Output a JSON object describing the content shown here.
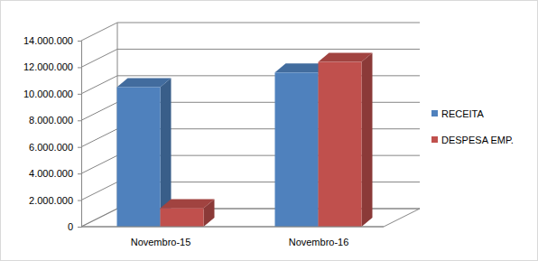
{
  "chart_data": {
    "type": "bar",
    "categories": [
      "Novembro-15",
      "Novembro-16"
    ],
    "series": [
      {
        "name": "RECEITA",
        "color": "#4f81bd",
        "values": [
          10500000,
          11600000
        ]
      },
      {
        "name": "DESPESA EMP.",
        "color": "#c0504d",
        "values": [
          1400000,
          12400000
        ]
      }
    ],
    "ylim": [
      0,
      14000000
    ],
    "yticks": [
      0,
      {
        "value": 2000000,
        "label": "2.000.000"
      },
      {
        "value": 4000000,
        "label": "4.000.000"
      },
      {
        "value": 6000000,
        "label": "6.000.000"
      },
      {
        "value": 8000000,
        "label": "8.000.000"
      },
      {
        "value": 10000000,
        "label": "10.000.000"
      },
      {
        "value": 12000000,
        "label": "12.000.000"
      },
      {
        "value": 14000000,
        "label": "14.000.000"
      }
    ],
    "grid": true,
    "legend": "right"
  }
}
